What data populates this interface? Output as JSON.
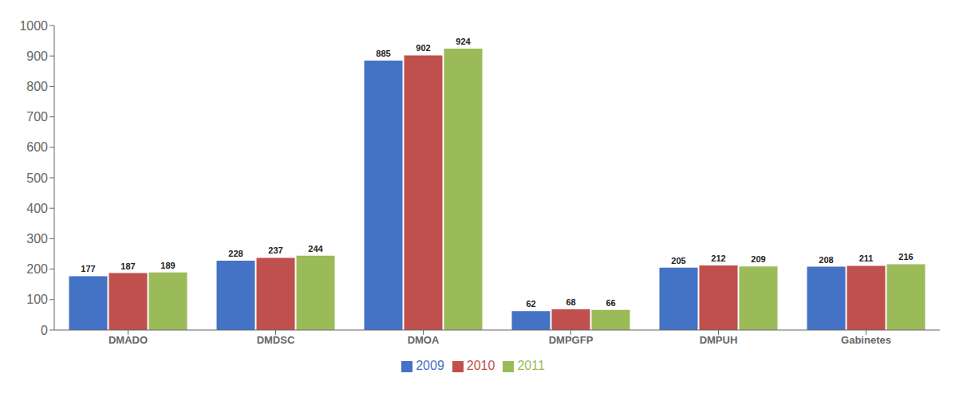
{
  "chart_data": {
    "type": "bar",
    "categories": [
      "DMADO",
      "DMDSC",
      "DMOA",
      "DMPGFP",
      "DMPUH",
      "Gabinetes"
    ],
    "series": [
      {
        "name": "2009",
        "color": "#4472C4",
        "values": [
          177,
          228,
          885,
          62,
          205,
          208
        ]
      },
      {
        "name": "2010",
        "color": "#C0504D",
        "values": [
          187,
          237,
          902,
          68,
          212,
          211
        ]
      },
      {
        "name": "2011",
        "color": "#9BBB59",
        "values": [
          189,
          244,
          924,
          66,
          209,
          216
        ]
      }
    ],
    "ylim": [
      0,
      1000
    ],
    "yticks": [
      0,
      100,
      200,
      300,
      400,
      500,
      600,
      700,
      800,
      900,
      1000
    ],
    "grid": false,
    "legend": "bottom",
    "data_labels": true
  }
}
